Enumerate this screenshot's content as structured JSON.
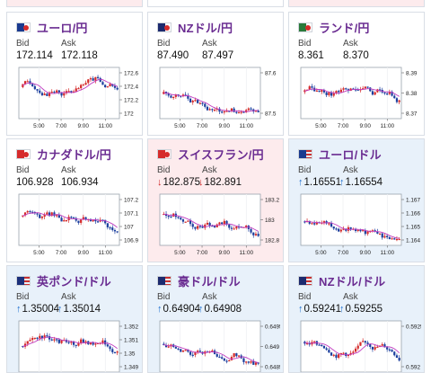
{
  "cards": [
    {
      "pair": "ユーロ/円",
      "flag": "eu-jp-flag",
      "bg": "white",
      "bid": "172.114",
      "ask": "172.118",
      "arrow": "",
      "yticks": [
        "172.6",
        "172.4",
        "172.2",
        "172"
      ],
      "xticks": [
        "5:00",
        "7:00",
        "9:00",
        "11:00"
      ]
    },
    {
      "pair": "NZドル/円",
      "flag": "nz-jp-flag",
      "bg": "white",
      "bid": "87.490",
      "ask": "87.497",
      "arrow": "",
      "yticks": [
        "87.6",
        "87.5"
      ],
      "xticks": [
        "5:00",
        "7:00",
        "9:00",
        "11:00"
      ]
    },
    {
      "pair": "ランド/円",
      "flag": "za-jp-flag",
      "bg": "white",
      "bid": "8.361",
      "ask": "8.370",
      "arrow": "",
      "yticks": [
        "8.39",
        "8.38",
        "8.37"
      ],
      "xticks": [
        "5:00",
        "7:00",
        "9:00",
        "11:00"
      ]
    },
    {
      "pair": "カナダドル/円",
      "flag": "ca-jp-flag",
      "bg": "white",
      "bid": "106.928",
      "ask": "106.934",
      "arrow": "",
      "yticks": [
        "107.2",
        "107.1",
        "107",
        "106.9"
      ],
      "xticks": [
        "5:00",
        "7:00",
        "9:00",
        "11:00"
      ]
    },
    {
      "pair": "スイスフラン/円",
      "flag": "ch-jp-flag",
      "bg": "pink",
      "bid": "182.875",
      "ask": "182.891",
      "arrow": "down",
      "yticks": [
        "183.2",
        "183",
        "182.8"
      ],
      "xticks": [
        "5:00",
        "7:00",
        "9:00",
        "11:00"
      ]
    },
    {
      "pair": "ユーロ/ドル",
      "flag": "eu-us-flag",
      "bg": "blue",
      "bid": "1.16551",
      "ask": "1.16554",
      "arrow": "up",
      "yticks": [
        "1.167",
        "1.166",
        "1.165",
        "1.164"
      ],
      "xticks": [
        "5:00",
        "7:00",
        "9:00",
        "11:00"
      ]
    },
    {
      "pair": "英ポンド/ドル",
      "flag": "gb-us-flag",
      "bg": "blue",
      "bid": "1.35004",
      "ask": "1.35014",
      "arrow": "up",
      "yticks": [
        "1.352",
        "1.351",
        "1.35",
        "1.349"
      ],
      "xticks": [
        "5:00",
        "7:00",
        "9:00",
        "11:00"
      ]
    },
    {
      "pair": "豪ドル/ドル",
      "flag": "au-us-flag",
      "bg": "blue",
      "bid": "0.64904",
      "ask": "0.64908",
      "arrow": "up",
      "yticks": [
        "0.6495",
        "0.649",
        "0.6485"
      ],
      "xticks": []
    },
    {
      "pair": "NZドル/ドル",
      "flag": "nz-us-flag",
      "bg": "blue",
      "bid": "0.59241",
      "ask": "0.59255",
      "arrow": "up",
      "yticks": [
        "0.5925",
        "0.592"
      ],
      "xticks": []
    }
  ],
  "labels": {
    "bid": "Bid",
    "ask": "Ask"
  },
  "glyphs": {
    "up": "↑",
    "down": "↓"
  },
  "colors": {
    "bull": "#d42a2a",
    "bear": "#1c3f9e",
    "ma": "#c03cc0",
    "pair": "#6a2c91",
    "up_arrow": "#1e6fd0",
    "down_arrow": "#d02828"
  }
}
